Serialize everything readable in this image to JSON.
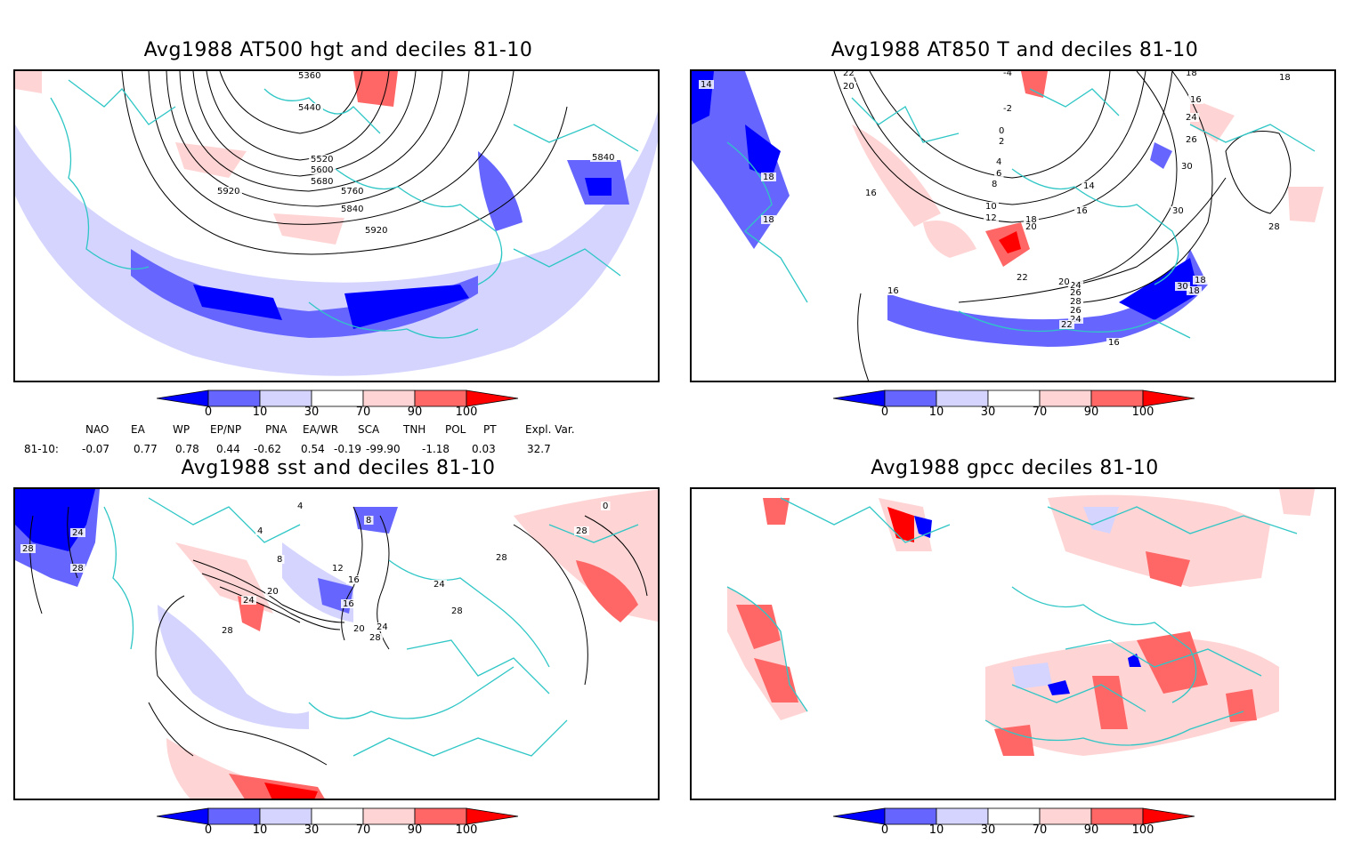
{
  "panels": [
    {
      "title": "Avg1988 AT500 hgt and deciles 81-10",
      "contour_labels": [
        "5360",
        "5440",
        "5520",
        "5600",
        "5680",
        "5760",
        "5840",
        "5920",
        "5920",
        "5840"
      ]
    },
    {
      "title": "Avg1988 AT850 T and deciles 81-10",
      "contour_labels": [
        "14",
        "22",
        "20",
        "-4",
        "18",
        "16",
        "18",
        "16",
        "-2",
        "0",
        "2",
        "4",
        "6",
        "8",
        "10",
        "12",
        "14",
        "16",
        "18",
        "20",
        "22",
        "24",
        "26",
        "28",
        "26",
        "24",
        "22",
        "20",
        "18",
        "16",
        "18",
        "18",
        "16",
        "24",
        "26",
        "30",
        "30",
        "30",
        "28",
        "18",
        "16"
      ]
    },
    {
      "title": "Avg1988 sst and deciles 81-10",
      "contour_labels": [
        "28",
        "24",
        "28",
        "4",
        "8",
        "12",
        "16",
        "20",
        "24",
        "28",
        "16",
        "20",
        "24",
        "28",
        "24",
        "28",
        "28",
        "28",
        "0",
        "4",
        "8"
      ]
    },
    {
      "title": "Avg1988 gpcc deciles 81-10",
      "contour_labels": []
    }
  ],
  "colorbar": {
    "tick_labels": [
      "0",
      "10",
      "30",
      "70",
      "90",
      "100"
    ],
    "colors": [
      "#0000ff",
      "#6666ff",
      "#d4d4ff",
      "#ffffff",
      "#ffd4d4",
      "#ff6666",
      "#ff0000"
    ]
  },
  "indices": {
    "row_label": "81-10:",
    "headers": [
      "NAO",
      "EA",
      "WP",
      "EP/NP",
      "PNA",
      "EA/WR",
      "SCA",
      "TNH",
      "POL",
      "PT",
      "Expl. Var."
    ],
    "values": [
      "-0.07",
      "0.77",
      "0.78",
      "0.44",
      "-0.62",
      "0.54",
      "-0.19",
      "-99.90",
      "-1.18",
      "0.03",
      "32.7"
    ]
  },
  "colors": {
    "coast": "#2fc6c6",
    "contour": "#000000",
    "frame": "#000000"
  }
}
